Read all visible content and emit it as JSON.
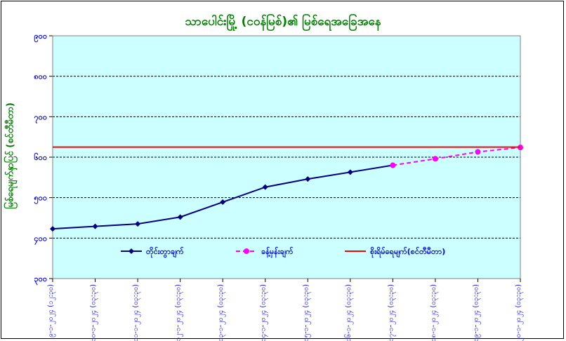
{
  "chart_data": {
    "type": "line",
    "title": "သာပေါင်းမြို့ (ငဝန်မြစ်)၏ မြစ်ရေအခြေအနေ",
    "ylabel": "မြစ်ရေမျက်နှာပြင် (စင်တီမီတာ)",
    "xlabel": "",
    "y_tick_labels": [
      "၉၀၀",
      "၈၀၀",
      "၇၀၀",
      "၆၀၀",
      "၅၀၀",
      "၄၀၀",
      "၃၀၀"
    ],
    "ylim": [
      300,
      900
    ],
    "grid": true,
    "legend_position": "inside-bottom",
    "categories": [
      "၉-၁-၂၀၂၄ (၁၂:၃၀)",
      "၁၀-၁-၂၀၂၄ (၀၃:၃၀)",
      "၁၁-၁-၂၀၂၄ (၀၃:၃၀)",
      "၁၂-၁-၂၀၂၄ (၀၃:၃၀)",
      "၁၃-၁-၂၀၂၄ (၀၃:၃၀)",
      "၁၄-၁-၂၀၂၄ (၀၃:၃၀)",
      "၁၅-၁-၂၀၂၄ (၀၃:၃၀)",
      "၁၆-၁-၂၀၂၄ (၀၃:၃၀)",
      "၁၇-၁-၂၀၂၄ (၀၃:၃၀)",
      "၁၈-၁-၂၀၂၄ (၀၃:၃၀)",
      "၁၉-၁-၂၀၂၄ (၀၃:၃၀)",
      "၂၀-၁-၂၀၂၄ (၀၃:၃၀)"
    ],
    "series": [
      {
        "name": "တိုင်းတွာချက်",
        "color": "#000080",
        "style": "solid",
        "marker": "diamond",
        "values": [
          423,
          429,
          435,
          452,
          489,
          526,
          546,
          563,
          580,
          null,
          null,
          null
        ]
      },
      {
        "name": "ခန့်မှန်းချက်",
        "color": "#ff00ff",
        "style": "dashed",
        "marker": "circle",
        "values": [
          null,
          null,
          null,
          null,
          null,
          null,
          null,
          null,
          580,
          596,
          613,
          624
        ]
      },
      {
        "name": "စိုးရိမ်ရေမျက်(စင်တီမီတာ)",
        "color": "#ff0000",
        "style": "solid",
        "marker": "none",
        "constant": 625
      }
    ],
    "colors": {
      "plot_background": "#ccffff",
      "title": "#008000",
      "axis_text": "#0000ff"
    }
  }
}
